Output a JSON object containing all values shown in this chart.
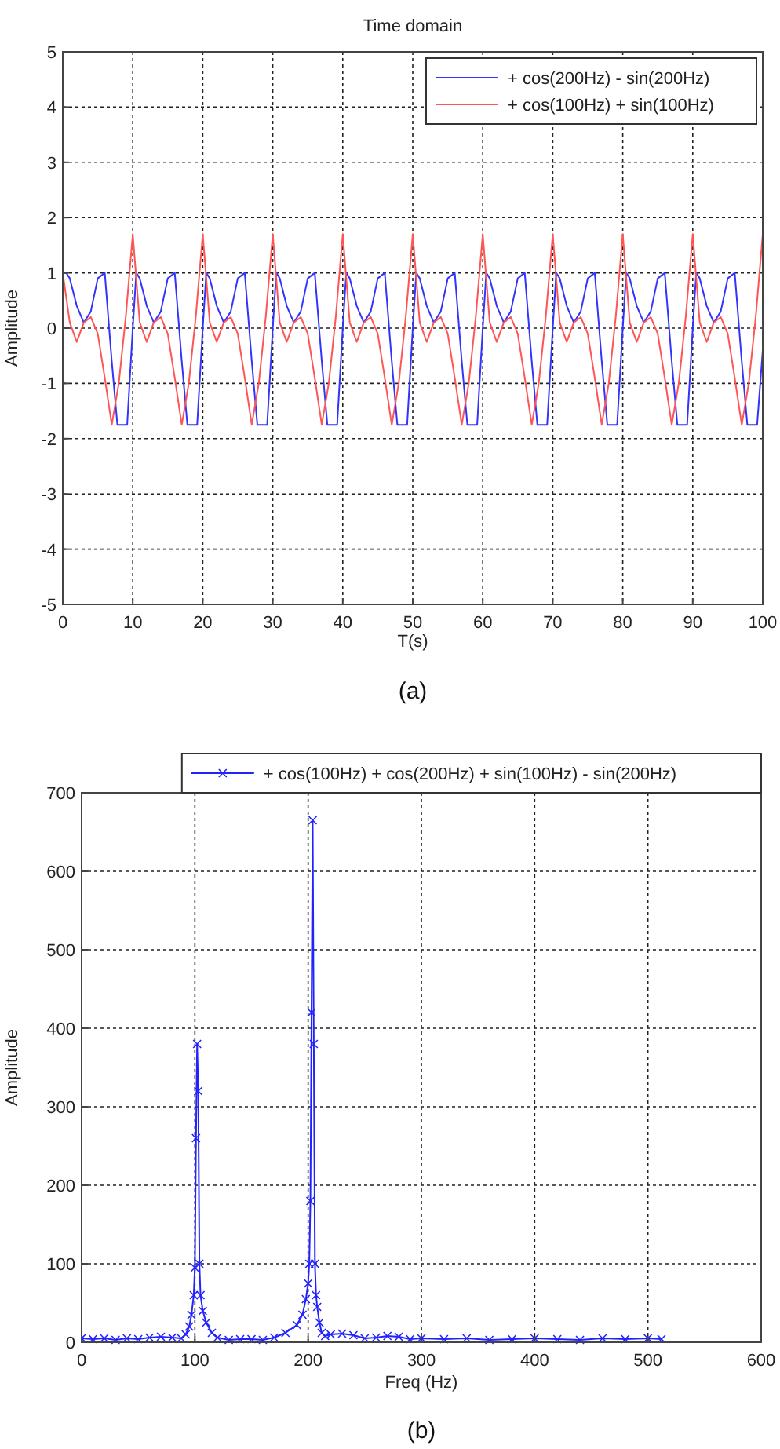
{
  "chart_data": [
    {
      "type": "line",
      "title": "Time domain",
      "xlabel": "T(s)",
      "ylabel": "Amplitude",
      "annotations": [
        "(a)"
      ],
      "xlim": [
        0,
        100
      ],
      "ylim": [
        -5,
        5
      ],
      "xticks": [
        0,
        10,
        20,
        30,
        40,
        50,
        60,
        70,
        80,
        90,
        100
      ],
      "yticks": [
        -5,
        -4,
        -3,
        -2,
        -1,
        0,
        1,
        2,
        3,
        4,
        5
      ],
      "grid": true,
      "legend": "top right",
      "marker": "none",
      "line_style": "solid",
      "series": [
        {
          "name": "+ cos(200Hz) - sin(200Hz)",
          "color": "#3333ff",
          "x": [
            0,
            0.5,
            1,
            2,
            3,
            4,
            5,
            6,
            7,
            7.8,
            9.2,
            10,
            10.5,
            11,
            12,
            13,
            14,
            15,
            16,
            17,
            17.8,
            19.2,
            20,
            20.5,
            21,
            22,
            23,
            24,
            25,
            26,
            27,
            27.8,
            29.2,
            30,
            30.5,
            31,
            32,
            33,
            34,
            35,
            36,
            37,
            37.8,
            39.2,
            40,
            40.5,
            41,
            42,
            43,
            44,
            45,
            46,
            47,
            47.8,
            49.2,
            50,
            50.5,
            51,
            52,
            53,
            54,
            55,
            56,
            57,
            57.8,
            59.2,
            60,
            60.5,
            61,
            62,
            63,
            64,
            65,
            66,
            67,
            67.8,
            69.2,
            70,
            70.5,
            71,
            72,
            73,
            74,
            75,
            76,
            77,
            77.8,
            79.2,
            80,
            80.5,
            81,
            82,
            83,
            84,
            85,
            86,
            87,
            87.8,
            89.2,
            90,
            90.5,
            91,
            92,
            93,
            94,
            95,
            96,
            97,
            97.8,
            99.2,
            100
          ],
          "values": [
            1,
            1,
            0.9,
            0.4,
            0.1,
            0.3,
            0.9,
            1,
            -0.6,
            -1.75,
            -1.75,
            0,
            1,
            0.9,
            0.4,
            0.1,
            0.3,
            0.9,
            1,
            -0.6,
            -1.75,
            -1.75,
            0,
            1,
            0.9,
            0.4,
            0.1,
            0.3,
            0.9,
            1,
            -0.6,
            -1.75,
            -1.75,
            0,
            1,
            0.9,
            0.4,
            0.1,
            0.3,
            0.9,
            1,
            -0.6,
            -1.75,
            -1.75,
            0,
            1,
            0.9,
            0.4,
            0.1,
            0.3,
            0.9,
            1,
            -0.6,
            -1.75,
            -1.75,
            0,
            1,
            0.9,
            0.4,
            0.1,
            0.3,
            0.9,
            1,
            -0.6,
            -1.75,
            -1.75,
            0,
            1,
            0.9,
            0.4,
            0.1,
            0.3,
            0.9,
            1,
            -0.6,
            -1.75,
            -1.75,
            0,
            1,
            0.9,
            0.4,
            0.1,
            0.3,
            0.9,
            1,
            -0.6,
            -1.75,
            -1.75,
            0,
            1,
            0.9,
            0.4,
            0.1,
            0.3,
            0.9,
            1,
            -0.6,
            -1.75,
            -1.75,
            0,
            1,
            0.9,
            0.4,
            0.1,
            0.3,
            0.9,
            1,
            -0.6,
            -1.75,
            -1.75,
            -0.4
          ]
        },
        {
          "name": "+ cos(100Hz) + sin(100Hz)",
          "color": "#ff5555",
          "x": [
            0,
            1,
            2,
            3,
            4,
            5,
            6,
            7,
            8,
            9,
            10,
            11,
            12,
            13,
            14,
            15,
            16,
            17,
            18,
            19,
            20,
            21,
            22,
            23,
            24,
            25,
            26,
            27,
            28,
            29,
            30,
            31,
            32,
            33,
            34,
            35,
            36,
            37,
            38,
            39,
            40,
            41,
            42,
            43,
            44,
            45,
            46,
            47,
            48,
            49,
            50,
            51,
            52,
            53,
            54,
            55,
            56,
            57,
            58,
            59,
            60,
            61,
            62,
            63,
            64,
            65,
            66,
            67,
            68,
            69,
            70,
            71,
            72,
            73,
            74,
            75,
            76,
            77,
            78,
            79,
            80,
            81,
            82,
            83,
            84,
            85,
            86,
            87,
            88,
            89,
            90,
            91,
            92,
            93,
            94,
            95,
            96,
            97,
            98,
            99,
            100
          ],
          "values": [
            1,
            0.1,
            -0.25,
            0.1,
            0.2,
            -0.1,
            -0.9,
            -1.75,
            -1,
            0.2,
            1.7,
            0.1,
            -0.25,
            0.1,
            0.2,
            -0.1,
            -0.9,
            -1.75,
            -1,
            0.2,
            1.7,
            0.1,
            -0.25,
            0.1,
            0.2,
            -0.1,
            -0.9,
            -1.75,
            -1,
            0.2,
            1.7,
            0.1,
            -0.25,
            0.1,
            0.2,
            -0.1,
            -0.9,
            -1.75,
            -1,
            0.2,
            1.7,
            0.1,
            -0.25,
            0.1,
            0.2,
            -0.1,
            -0.9,
            -1.75,
            -1,
            0.2,
            1.7,
            0.1,
            -0.25,
            0.1,
            0.2,
            -0.1,
            -0.9,
            -1.75,
            -1,
            0.2,
            1.7,
            0.1,
            -0.25,
            0.1,
            0.2,
            -0.1,
            -0.9,
            -1.75,
            -1,
            0.2,
            1.7,
            0.1,
            -0.25,
            0.1,
            0.2,
            -0.1,
            -0.9,
            -1.75,
            -1,
            0.2,
            1.7,
            0.1,
            -0.25,
            0.1,
            0.2,
            -0.1,
            -0.9,
            -1.75,
            -1,
            0.2,
            1.7,
            0.1,
            -0.25,
            0.1,
            0.2,
            -0.1,
            -0.9,
            -1.75,
            -1,
            0.2,
            1.7
          ]
        }
      ]
    },
    {
      "type": "line",
      "xlabel": "Freq (Hz)",
      "ylabel": "Amplitude",
      "annotations": [
        "(b)"
      ],
      "xlim": [
        0,
        600
      ],
      "ylim": [
        0,
        700
      ],
      "xticks": [
        0,
        100,
        200,
        300,
        400,
        500,
        600
      ],
      "yticks": [
        0,
        100,
        200,
        300,
        400,
        500,
        600,
        700
      ],
      "grid": true,
      "legend": "top",
      "marker": "cross",
      "line_style": "solid",
      "series": [
        {
          "name": "+ cos(100Hz) + cos(200Hz) + sin(100Hz) - sin(200Hz)",
          "color": "#2222ff",
          "x": [
            0,
            10,
            20,
            30,
            40,
            50,
            60,
            70,
            80,
            88,
            92,
            95,
            97,
            99,
            100,
            101,
            102,
            103,
            104,
            105,
            107,
            110,
            115,
            120,
            130,
            140,
            150,
            160,
            170,
            180,
            190,
            195,
            198,
            200,
            201,
            202,
            203,
            204,
            205,
            206,
            207,
            208,
            210,
            212,
            215,
            220,
            230,
            240,
            250,
            260,
            270,
            280,
            290,
            300,
            320,
            340,
            360,
            380,
            400,
            420,
            440,
            460,
            480,
            500,
            512
          ],
          "values": [
            5,
            4,
            5,
            3,
            5,
            4,
            6,
            7,
            6,
            5,
            10,
            20,
            35,
            60,
            95,
            260,
            380,
            320,
            100,
            60,
            40,
            25,
            12,
            6,
            3,
            4,
            4,
            3,
            6,
            12,
            22,
            35,
            55,
            75,
            100,
            180,
            420,
            665,
            380,
            100,
            60,
            45,
            25,
            12,
            8,
            10,
            11,
            9,
            5,
            6,
            8,
            7,
            4,
            5,
            4,
            5,
            3,
            4,
            5,
            4,
            3,
            5,
            4,
            5,
            4
          ]
        }
      ]
    }
  ]
}
